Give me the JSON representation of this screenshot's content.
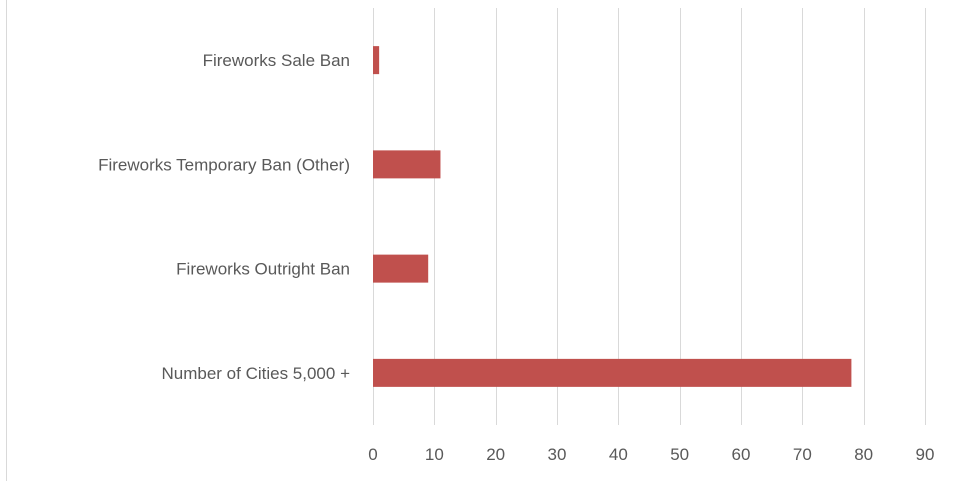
{
  "chart_data": {
    "type": "bar",
    "orientation": "horizontal",
    "categories": [
      "Number of Cities 5,000 +",
      "Fireworks Outright  Ban",
      "Fireworks Temporary Ban (Other)",
      "Fireworks Sale Ban"
    ],
    "series": [
      {
        "values": [
          78,
          9,
          11,
          1
        ]
      }
    ],
    "xlim": [
      0,
      90
    ],
    "x_ticks": [
      "0",
      "10",
      "20",
      "30",
      "40",
      "50",
      "60",
      "70",
      "80",
      "90"
    ],
    "title": "",
    "xlabel": "",
    "ylabel": "",
    "grid": "vertical",
    "legend": "none",
    "colors": {
      "bar": "#c0504d",
      "grid": "#d9d9d9",
      "text": "#595959"
    }
  }
}
